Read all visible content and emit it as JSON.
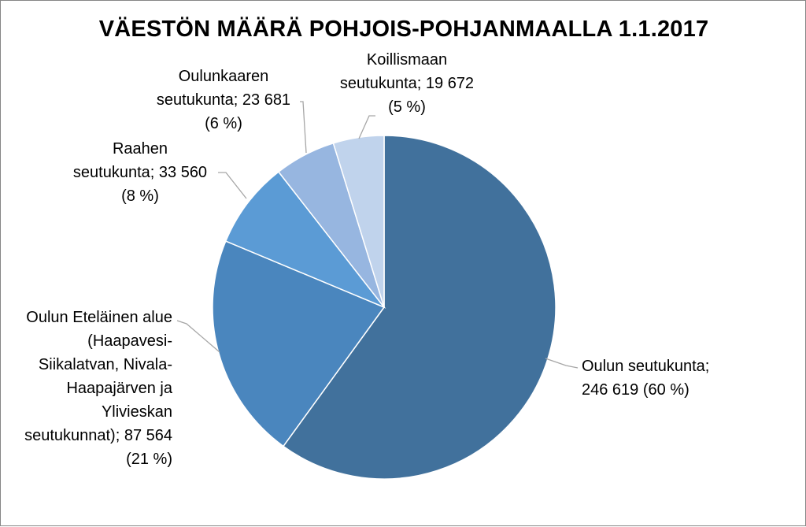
{
  "chart_data": {
    "type": "pie",
    "title": "VÄESTÖN MÄÄRÄ POHJOIS-POHJANMAALLA 1.1.2017",
    "slices": [
      {
        "name": "Oulun seutukunta",
        "value": 246619,
        "percent": 60,
        "color": "#41719C",
        "label_lines": [
          "Oulun seutukunta;",
          "246 619 (60 %)"
        ]
      },
      {
        "name": "Oulun Eteläinen alue (Haapavesi-Siikalatvan, Nivala-Haapajärven ja Ylivieskan seutukunnat)",
        "value": 87564,
        "percent": 21,
        "color": "#4A86BE",
        "label_lines": [
          "Oulun Eteläinen alue",
          "(Haapavesi-",
          "Siikalatvan, Nivala-",
          "Haapajärven ja",
          "Ylivieskan",
          "seutukunnat); 87 564",
          "(21 %)"
        ]
      },
      {
        "name": "Raahen seutukunta",
        "value": 33560,
        "percent": 8,
        "color": "#5B9BD5",
        "label_lines": [
          "Raahen",
          "seutukunta; 33 560",
          "(8 %)"
        ]
      },
      {
        "name": "Oulunkaaren seutukunta",
        "value": 23681,
        "percent": 6,
        "color": "#97B6E0",
        "label_lines": [
          "Oulunkaaren",
          "seutukunta; 23 681",
          "(6 %)"
        ]
      },
      {
        "name": "Koillismaan seutukunta",
        "value": 19672,
        "percent": 5,
        "color": "#C0D3EC",
        "label_lines": [
          "Koillismaan",
          "seutukunta; 19 672",
          "(5 %)"
        ]
      }
    ],
    "start": "12 o'clock",
    "direction": "clockwise",
    "legend": "none",
    "data_labels": "outside with leader lines"
  }
}
